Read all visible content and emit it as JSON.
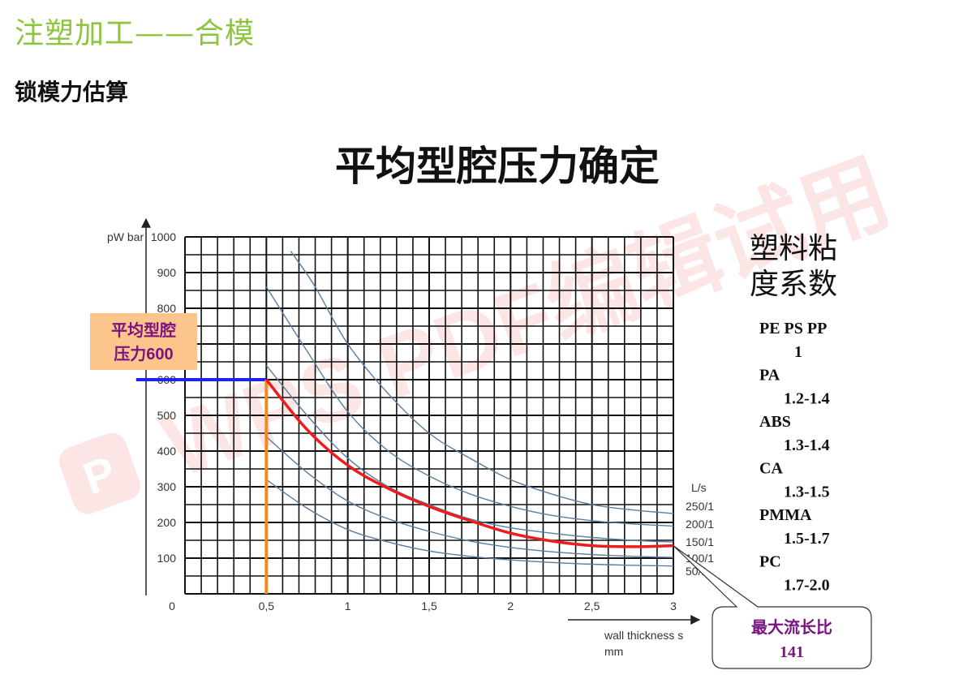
{
  "header": {
    "title": "注塑加工——合模",
    "subtitle": "锁模力估算"
  },
  "watermark": "WPS PDF编辑试用",
  "chart_data": {
    "type": "line",
    "title": "平均型腔压力确定",
    "ylabel": "pW bar",
    "xlabel": "wall thickness s",
    "xunit": "mm",
    "xlim": [
      0,
      3
    ],
    "ylim": [
      0,
      1000
    ],
    "grid": true,
    "x_ticks": [
      {
        "value": 0,
        "label": "0"
      },
      {
        "value": 0.5,
        "label": "0,5"
      },
      {
        "value": 1,
        "label": "1"
      },
      {
        "value": 1.5,
        "label": "1,5"
      },
      {
        "value": 2,
        "label": "2"
      },
      {
        "value": 2.5,
        "label": "2,5"
      },
      {
        "value": 3,
        "label": "3"
      }
    ],
    "y_ticks": [
      {
        "value": 100,
        "label": "100"
      },
      {
        "value": 200,
        "label": "200"
      },
      {
        "value": 300,
        "label": "300"
      },
      {
        "value": 400,
        "label": "400"
      },
      {
        "value": 500,
        "label": "500"
      },
      {
        "value": 600,
        "label": "600"
      },
      {
        "value": 700,
        "label": "700"
      },
      {
        "value": 800,
        "label": "800"
      },
      {
        "value": 900,
        "label": "900"
      },
      {
        "value": 1000,
        "label": "1000"
      }
    ],
    "ls_title": "L/s",
    "series": [
      {
        "name": "250/1",
        "color": "#5a7da0",
        "x": [
          0.65,
          0.8,
          1.0,
          1.25,
          1.5,
          1.75,
          2.0,
          2.25,
          2.5,
          2.75,
          3.0
        ],
        "y": [
          960,
          860,
          700,
          560,
          450,
          380,
          320,
          280,
          250,
          235,
          225
        ]
      },
      {
        "name": "200/1",
        "color": "#5a7da0",
        "x": [
          0.5,
          0.75,
          1.0,
          1.25,
          1.5,
          1.75,
          2.0,
          2.25,
          2.5,
          2.75,
          3.0
        ],
        "y": [
          860,
          680,
          510,
          400,
          330,
          280,
          245,
          220,
          205,
          196,
          190
        ]
      },
      {
        "name": "150/1",
        "color": "#5a7da0",
        "x": [
          0.5,
          0.75,
          1.0,
          1.25,
          1.5,
          1.75,
          2.0,
          2.25,
          2.5,
          2.75,
          3.0
        ],
        "y": [
          640,
          500,
          380,
          300,
          250,
          210,
          185,
          170,
          158,
          150,
          145
        ]
      },
      {
        "name": "100/1",
        "color": "#5a7da0",
        "x": [
          0.5,
          0.75,
          1.0,
          1.25,
          1.5,
          1.75,
          2.0,
          2.25,
          2.5,
          2.75,
          3.0
        ],
        "y": [
          440,
          340,
          260,
          210,
          175,
          148,
          130,
          118,
          110,
          105,
          102
        ]
      },
      {
        "name": "50/1",
        "color": "#5a7da0",
        "x": [
          0.5,
          0.75,
          1.0,
          1.25,
          1.5,
          1.75,
          2.0,
          2.25,
          2.5,
          2.75,
          3.0
        ],
        "y": [
          320,
          240,
          180,
          145,
          120,
          105,
          95,
          88,
          83,
          80,
          78
        ]
      }
    ],
    "highlight_curve": {
      "color": "#ee1c1c",
      "x": [
        0.5,
        0.75,
        1.0,
        1.25,
        1.5,
        1.75,
        2.0,
        2.25,
        2.5,
        2.75,
        3.0
      ],
      "y": [
        600,
        460,
        360,
        295,
        245,
        205,
        170,
        148,
        135,
        132,
        135
      ]
    },
    "reference_lines": {
      "horizontal": {
        "y": 600,
        "x_from": -0.3,
        "x_to": 0.5,
        "color": "#1e22ee"
      },
      "vertical": {
        "x": 0.5,
        "y_from": 600,
        "y_to": 0,
        "color": "#f28a1e"
      }
    },
    "annotations": {
      "pressure_box": {
        "line1": "平均型腔",
        "line2": "压力600"
      },
      "flow_ratio_box": {
        "line1": "最大流长比",
        "line2": "141",
        "target_x": 3.0,
        "target_y": 135
      }
    },
    "viscosity": {
      "title_line1": "塑料粘",
      "title_line2": "度系数",
      "items": [
        {
          "material": "PE PS PP",
          "value": "1"
        },
        {
          "material": "PA",
          "value": "1.2-1.4"
        },
        {
          "material": "ABS",
          "value": "1.3-1.4"
        },
        {
          "material": "CA",
          "value": "1.3-1.5"
        },
        {
          "material": "PMMA",
          "value": "1.5-1.7"
        },
        {
          "material": "PC",
          "value": "1.7-2.0"
        }
      ]
    }
  }
}
